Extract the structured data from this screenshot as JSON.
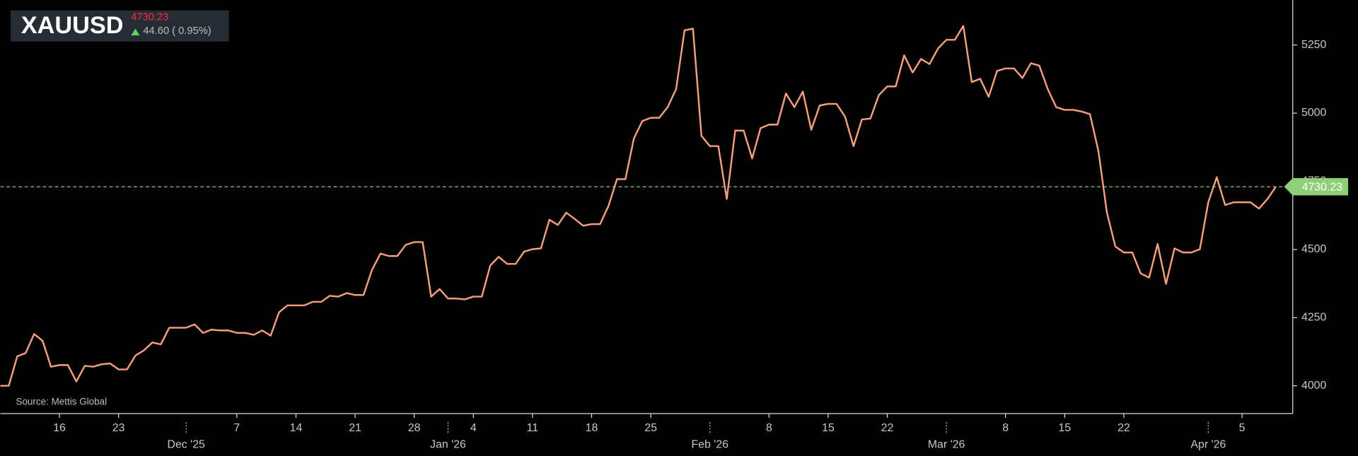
{
  "chart_data": {
    "type": "line",
    "title": "XAUUSD",
    "current_price": 4730.23,
    "change": "44.60 ( 0.95%)",
    "source": "Source: Mettis Global",
    "color": "#f59e80",
    "reference_color": "#8fcf78",
    "x": [
      "2025-11-09",
      "2025-11-10",
      "2025-11-11",
      "2025-11-12",
      "2025-11-13",
      "2025-11-14",
      "2025-11-15",
      "2025-11-16",
      "2025-11-17",
      "2025-11-18",
      "2025-11-19",
      "2025-11-20",
      "2025-11-21",
      "2025-11-22",
      "2025-11-23",
      "2025-11-24",
      "2025-11-25",
      "2025-11-26",
      "2025-11-27",
      "2025-11-28",
      "2025-11-29",
      "2025-11-30",
      "2025-12-01",
      "2025-12-02",
      "2025-12-03",
      "2025-12-04",
      "2025-12-05",
      "2025-12-06",
      "2025-12-07",
      "2025-12-08",
      "2025-12-09",
      "2025-12-10",
      "2025-12-11",
      "2025-12-12",
      "2025-12-13",
      "2025-12-14",
      "2025-12-15",
      "2025-12-16",
      "2025-12-17",
      "2025-12-18",
      "2025-12-19",
      "2025-12-20",
      "2025-12-21",
      "2025-12-22",
      "2025-12-23",
      "2025-12-24",
      "2025-12-25",
      "2025-12-26",
      "2025-12-27",
      "2025-12-28",
      "2025-12-29",
      "2025-12-30",
      "2025-12-31",
      "2026-01-01",
      "2026-01-02",
      "2026-01-03",
      "2026-01-04",
      "2026-01-05",
      "2026-01-06",
      "2026-01-07",
      "2026-01-08",
      "2026-01-09",
      "2026-01-10",
      "2026-01-11",
      "2026-01-12",
      "2026-01-13",
      "2026-01-14",
      "2026-01-15",
      "2026-01-16",
      "2026-01-17",
      "2026-01-18",
      "2026-01-19",
      "2026-01-20",
      "2026-01-21",
      "2026-01-22",
      "2026-01-23",
      "2026-01-24",
      "2026-01-25",
      "2026-01-26",
      "2026-01-27",
      "2026-01-28",
      "2026-01-29",
      "2026-01-30",
      "2026-01-31",
      "2026-02-01",
      "2026-02-02",
      "2026-02-03",
      "2026-02-04",
      "2026-02-05",
      "2026-02-06",
      "2026-02-07",
      "2026-02-08",
      "2026-02-09",
      "2026-02-10",
      "2026-02-11",
      "2026-02-12",
      "2026-02-13",
      "2026-02-14",
      "2026-02-15",
      "2026-02-16",
      "2026-02-17",
      "2026-02-18",
      "2026-02-19",
      "2026-02-20",
      "2026-02-21",
      "2026-02-22",
      "2026-02-23",
      "2026-02-24",
      "2026-02-25",
      "2026-02-26",
      "2026-02-27",
      "2026-02-28",
      "2026-03-01",
      "2026-03-02",
      "2026-03-03",
      "2026-03-04",
      "2026-03-05",
      "2026-03-06",
      "2026-03-07",
      "2026-03-08",
      "2026-03-09",
      "2026-03-10",
      "2026-03-11",
      "2026-03-12",
      "2026-03-13",
      "2026-03-14",
      "2026-03-15",
      "2026-03-16",
      "2026-03-17",
      "2026-03-18",
      "2026-03-19",
      "2026-03-20",
      "2026-03-21",
      "2026-03-22",
      "2026-03-23",
      "2026-03-24",
      "2026-03-25",
      "2026-03-26",
      "2026-03-27",
      "2026-03-28",
      "2026-03-29",
      "2026-03-30",
      "2026-03-31",
      "2026-04-01",
      "2026-04-02",
      "2026-04-03",
      "2026-04-04",
      "2026-04-05",
      "2026-04-06",
      "2026-04-07",
      "2026-04-08",
      "2026-04-09"
    ],
    "values": [
      4000,
      4000,
      4108,
      4120,
      4190,
      4165,
      4070,
      4076,
      4076,
      4016,
      4073,
      4070,
      4079,
      4082,
      4060,
      4060,
      4111,
      4130,
      4159,
      4152,
      4213,
      4213,
      4213,
      4225,
      4194,
      4206,
      4203,
      4203,
      4194,
      4194,
      4187,
      4203,
      4184,
      4270,
      4295,
      4295,
      4295,
      4308,
      4308,
      4330,
      4327,
      4340,
      4333,
      4333,
      4425,
      4485,
      4476,
      4476,
      4517,
      4527,
      4527,
      4327,
      4355,
      4320,
      4320,
      4317,
      4327,
      4327,
      4441,
      4473,
      4447,
      4447,
      4492,
      4501,
      4504,
      4609,
      4590,
      4635,
      4612,
      4587,
      4593,
      4593,
      4660,
      4758,
      4758,
      4907,
      4971,
      4983,
      4983,
      5022,
      5088,
      5304,
      5310,
      4917,
      4879,
      4879,
      4685,
      4936,
      4936,
      4834,
      4945,
      4958,
      4958,
      5072,
      5022,
      5079,
      4939,
      5028,
      5034,
      5034,
      4987,
      4879,
      4977,
      4980,
      5066,
      5098,
      5098,
      5212,
      5149,
      5199,
      5180,
      5237,
      5269,
      5269,
      5320,
      5114,
      5126,
      5060,
      5155,
      5164,
      5164,
      5129,
      5183,
      5174,
      5088,
      5022,
      5012,
      5012,
      5006,
      4996,
      4860,
      4635,
      4511,
      4489,
      4489,
      4412,
      4397,
      4520,
      4374,
      4504,
      4489,
      4489,
      4501,
      4673,
      4765,
      4663,
      4673,
      4673,
      4673,
      4650,
      4685,
      4730.23
    ],
    "xlim": [
      "2025-11-09",
      "2026-04-11"
    ],
    "xticks": [
      {
        "value": "2025-11-16",
        "label": "16"
      },
      {
        "value": "2025-11-23",
        "label": "23"
      },
      {
        "value": "2025-12-07",
        "label": "7"
      },
      {
        "value": "2025-12-14",
        "label": "14"
      },
      {
        "value": "2025-12-21",
        "label": "21"
      },
      {
        "value": "2025-12-28",
        "label": "28"
      },
      {
        "value": "2026-01-04",
        "label": "4"
      },
      {
        "value": "2026-01-11",
        "label": "11"
      },
      {
        "value": "2026-01-18",
        "label": "18"
      },
      {
        "value": "2026-01-25",
        "label": "25"
      },
      {
        "value": "2026-02-08",
        "label": "8"
      },
      {
        "value": "2026-02-15",
        "label": "15"
      },
      {
        "value": "2026-02-22",
        "label": "22"
      },
      {
        "value": "2026-03-08",
        "label": "8"
      },
      {
        "value": "2026-03-15",
        "label": "15"
      },
      {
        "value": "2026-03-22",
        "label": "22"
      },
      {
        "value": "2026-04-05",
        "label": "5"
      }
    ],
    "month_ticks": [
      {
        "value": "2025-12-01",
        "label": "Dec '25"
      },
      {
        "value": "2026-01-01",
        "label": "Jan '26"
      },
      {
        "value": "2026-02-01",
        "label": "Feb '26"
      },
      {
        "value": "2026-03-01",
        "label": "Mar '26"
      },
      {
        "value": "2026-04-01",
        "label": "Apr '26"
      }
    ],
    "ylim": [
      3898,
      5415
    ],
    "yticks": [
      4000,
      4250,
      4500,
      4750,
      5000,
      5250
    ]
  }
}
